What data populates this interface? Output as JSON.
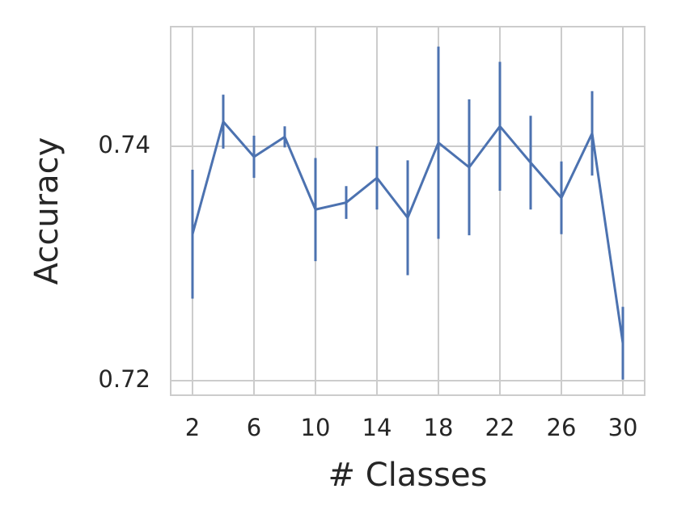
{
  "chart_data": {
    "type": "errorbar-line",
    "xlabel": "# Classes",
    "ylabel": "Accuracy",
    "x": [
      2,
      4,
      6,
      8,
      10,
      12,
      14,
      16,
      18,
      20,
      22,
      24,
      26,
      28,
      30
    ],
    "series": [
      {
        "color": "#4c72b0",
        "values": [
          0.7325,
          0.7421,
          0.7391,
          0.7408,
          0.7346,
          0.7352,
          0.7373,
          0.7339,
          0.7403,
          0.7382,
          0.7417,
          0.7386,
          0.7356,
          0.7411,
          0.7232
        ],
        "errors": [
          0.0055,
          0.0023,
          0.0018,
          0.0009,
          0.0044,
          0.0014,
          0.0027,
          0.0049,
          0.0082,
          0.0058,
          0.0055,
          0.004,
          0.0031,
          0.0036,
          0.0031
        ]
      }
    ],
    "xlim": [
      0.58,
      31.42
    ],
    "ylim": [
      0.71876,
      0.7502
    ],
    "xticks": [
      2,
      6,
      10,
      14,
      18,
      22,
      26,
      30
    ],
    "yticks": [
      0.72,
      0.74
    ],
    "grid": true
  }
}
